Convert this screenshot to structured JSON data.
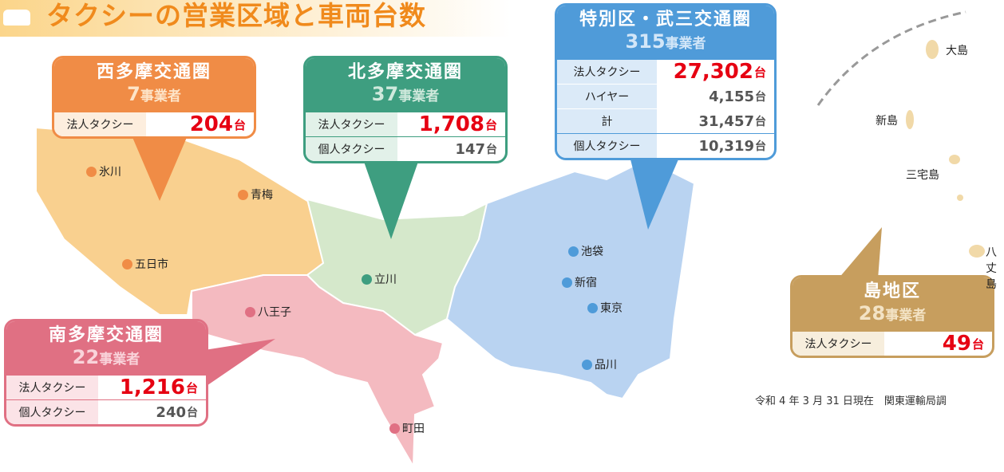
{
  "header": {
    "title": "タクシーの営業区域と車両台数"
  },
  "regions": [
    {
      "name": "西多摩交通圏",
      "count": "7",
      "count_unit": "事業者",
      "rows": [
        {
          "label": "法人タクシー",
          "value": "204",
          "unit": "台"
        }
      ],
      "places": [
        "氷川",
        "青梅",
        "五日市"
      ]
    },
    {
      "name": "北多摩交通圏",
      "count": "37",
      "count_unit": "事業者",
      "rows": [
        {
          "label": "法人タクシー",
          "value": "1,708",
          "unit": "台"
        },
        {
          "label": "個人タクシー",
          "value": "147",
          "unit": "台"
        }
      ],
      "places": [
        "立川"
      ]
    },
    {
      "name": "特別区・武三交通圏",
      "count": "315",
      "count_unit": "事業者",
      "rows": [
        {
          "label": "法人タクシー",
          "value": "27,302",
          "unit": "台"
        },
        {
          "label": "ハイヤー",
          "value": "4,155",
          "unit": "台"
        },
        {
          "label": "計",
          "value": "31,457",
          "unit": "台"
        },
        {
          "label": "個人タクシー",
          "value": "10,319",
          "unit": "台"
        }
      ],
      "places": [
        "池袋",
        "新宿",
        "東京",
        "品川"
      ]
    },
    {
      "name": "南多摩交通圏",
      "count": "22",
      "count_unit": "事業者",
      "rows": [
        {
          "label": "法人タクシー",
          "value": "1,216",
          "unit": "台"
        },
        {
          "label": "個人タクシー",
          "value": "240",
          "unit": "台"
        }
      ],
      "places": [
        "八王子",
        "町田"
      ]
    },
    {
      "name": "島地区",
      "count": "28",
      "count_unit": "事業者",
      "rows": [
        {
          "label": "法人タクシー",
          "value": "49",
          "unit": "台"
        }
      ],
      "places": [
        "大島",
        "新島",
        "三宅島",
        "八丈島"
      ]
    }
  ],
  "note": "令和 4 年 3 月 31 日現在　関東運輸局調"
}
